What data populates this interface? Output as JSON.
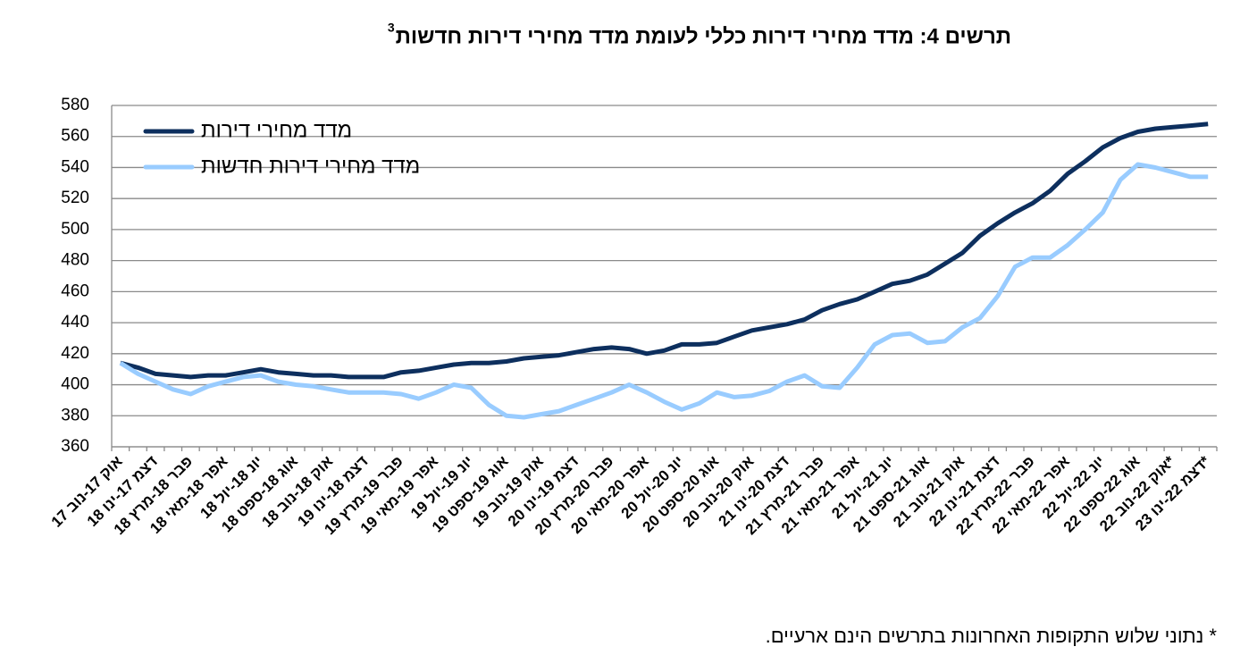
{
  "chart_data": {
    "type": "line",
    "title": "תרשים 4: מדד מחירי דירות כללי לעומת מדד מחירי דירות חדשות",
    "title_footnote": "3",
    "note": "* נתוני שלוש התקופות האחרונות בתרשים הינם ארעיים.",
    "categories": [
      "אוק 17-נוב 17",
      null,
      "דצמ 17-ינו 18",
      null,
      "פבר 18-מרץ 18",
      null,
      "אפר 18-מאי 18",
      null,
      "יונ 18-יול 18",
      null,
      "אוג 18-ספט 18",
      null,
      "אוק 18-נוב 18",
      null,
      "דצמ 18-ינו 19",
      null,
      "פבר 19-מרץ 19",
      null,
      "אפר 19-מאי 19",
      null,
      "יונ 19-יול 19",
      null,
      "אוג 19-ספט 19",
      null,
      "אוק 19-נוב 19",
      null,
      "דצמ 19-ינו 20",
      null,
      "פבר 20-מרץ 20",
      null,
      "אפר 20-מאי 20",
      null,
      "יונ 20-יול 20",
      null,
      "אוג 20-ספט 20",
      null,
      "אוק 20-נוב 20",
      null,
      "דצמ 20-ינו 21",
      null,
      "פבר 21-מרץ 21",
      null,
      "אפר 21-מאי 21",
      null,
      "יונ 21-יול 21",
      null,
      "אוג 21-ספט 21",
      null,
      "אוק 21-נוב 21",
      null,
      "דצמ 21-ינו 22",
      null,
      "פבר 22-מרץ 22",
      null,
      "אפר 22-מאי 22",
      null,
      "יונ 22-יול 22",
      null,
      "אוג 22-ספט 22",
      null,
      "אוק 22-נוב 22*",
      null,
      "דצמ 22-ינו 23*"
    ],
    "series": [
      {
        "name": "מדד מחירי דירות",
        "color": "#0d2f5e",
        "values": [
          414,
          411,
          407,
          406,
          405,
          406,
          406,
          408,
          410,
          408,
          407,
          406,
          406,
          405,
          405,
          405,
          408,
          409,
          411,
          413,
          414,
          414,
          415,
          417,
          418,
          419,
          421,
          423,
          424,
          423,
          420,
          422,
          426,
          426,
          427,
          431,
          435,
          437,
          439,
          442,
          448,
          452,
          455,
          460,
          465,
          467,
          471,
          478,
          485,
          496,
          504,
          511,
          517,
          525,
          536,
          544,
          553,
          559,
          563,
          565,
          566,
          567,
          568
        ]
      },
      {
        "name": "מדד מחירי דירות חדשות",
        "color": "#99ccff",
        "values": [
          414,
          407,
          402,
          397,
          394,
          399,
          402,
          405,
          406,
          402,
          400,
          399,
          397,
          395,
          395,
          395,
          394,
          391,
          395,
          400,
          398,
          387,
          380,
          379,
          381,
          383,
          387,
          391,
          395,
          400,
          395,
          389,
          384,
          388,
          395,
          392,
          393,
          396,
          402,
          406,
          399,
          398,
          411,
          426,
          432,
          433,
          427,
          428,
          437,
          443,
          457,
          476,
          482,
          482,
          490,
          500,
          511,
          532,
          542,
          540,
          537,
          534,
          534
        ]
      }
    ],
    "ylim": [
      360,
      580
    ],
    "yticks": [
      360,
      380,
      400,
      420,
      440,
      460,
      480,
      500,
      520,
      540,
      560,
      580
    ],
    "grid": true,
    "legend": "top-left"
  }
}
